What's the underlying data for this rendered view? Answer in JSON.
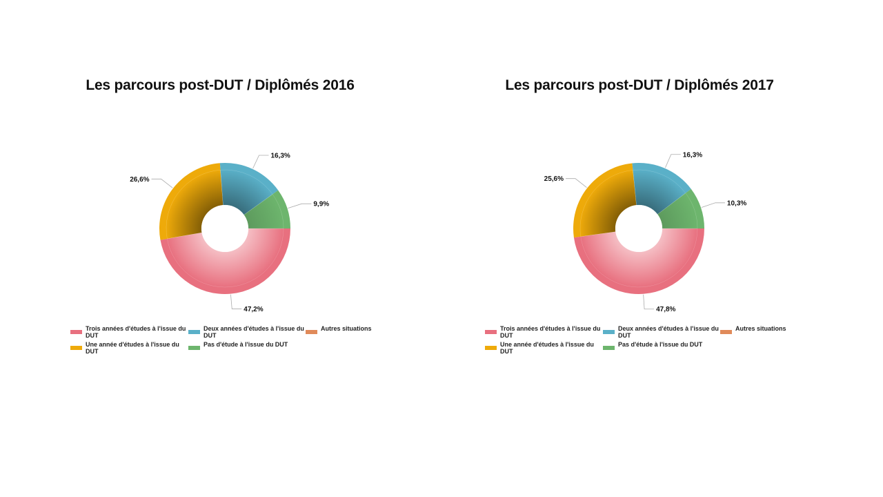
{
  "chart_data": [
    {
      "type": "pie",
      "title": "Les parcours post-DUT / Diplômés 2016",
      "categories": [
        "Trois années d'études à l'issue du DUT",
        "Deux années d'études à l'issue du DUT",
        "Autres situations",
        "Une année d'études à l'issue du DUT",
        "Pas d'étude à l'issue du DUT"
      ],
      "values": [
        47.2,
        16.3,
        0,
        26.6,
        9.9
      ],
      "value_labels": [
        "47,2%",
        "16,3%",
        "",
        "26,6%",
        "9,9%"
      ],
      "legend_position": "bottom"
    },
    {
      "type": "pie",
      "title": "Les parcours post-DUT / Diplômés 2017",
      "categories": [
        "Trois années d'études à l'issue du DUT",
        "Deux années d'études à l'issue du DUT",
        "Autres situations",
        "Une année d'études à l'issue du DUT",
        "Pas d'étude à l'issue du DUT"
      ],
      "values": [
        47.8,
        16.3,
        0,
        25.6,
        10.3
      ],
      "value_labels": [
        "47,8%",
        "16,3%",
        "",
        "25,6%",
        "10,3%"
      ],
      "legend_position": "bottom"
    }
  ],
  "colors": {
    "trois": "#e8707f",
    "deux": "#5ab0c8",
    "autres": "#e08a5a",
    "une": "#eeaa0a",
    "pas": "#6db56d"
  }
}
